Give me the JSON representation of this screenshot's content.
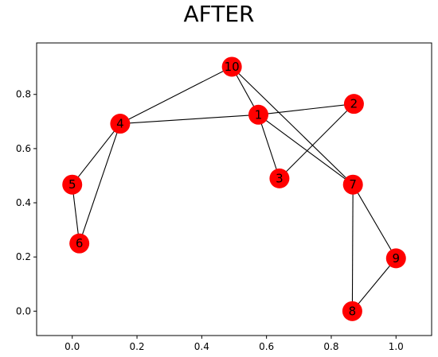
{
  "title": "AFTER",
  "chart_data": {
    "type": "network-graph",
    "title": "AFTER",
    "xlim": [
      -0.11,
      1.11
    ],
    "ylim": [
      -0.09,
      0.99
    ],
    "xticks": [
      0.0,
      0.2,
      0.4,
      0.6,
      0.8,
      1.0
    ],
    "xtick_labels": [
      "0.0",
      "0.2",
      "0.4",
      "0.6",
      "0.8",
      "1.0"
    ],
    "yticks": [
      0.0,
      0.2,
      0.4,
      0.6,
      0.8
    ],
    "ytick_labels": [
      "0.0",
      "0.2",
      "0.4",
      "0.6",
      "0.8"
    ],
    "grid": false,
    "node_color": "#ff0000",
    "edge_color": "#000000",
    "nodes": [
      {
        "id": "1",
        "x": 0.575,
        "y": 0.725
      },
      {
        "id": "2",
        "x": 0.87,
        "y": 0.765
      },
      {
        "id": "3",
        "x": 0.64,
        "y": 0.49
      },
      {
        "id": "4",
        "x": 0.148,
        "y": 0.692
      },
      {
        "id": "5",
        "x": 0.0,
        "y": 0.467
      },
      {
        "id": "6",
        "x": 0.022,
        "y": 0.25
      },
      {
        "id": "7",
        "x": 0.867,
        "y": 0.467
      },
      {
        "id": "8",
        "x": 0.865,
        "y": 0.0
      },
      {
        "id": "9",
        "x": 1.0,
        "y": 0.195
      },
      {
        "id": "10",
        "x": 0.493,
        "y": 0.902
      }
    ],
    "edges": [
      [
        "10",
        "4"
      ],
      [
        "10",
        "1"
      ],
      [
        "10",
        "7"
      ],
      [
        "4",
        "1"
      ],
      [
        "4",
        "5"
      ],
      [
        "4",
        "6"
      ],
      [
        "5",
        "6"
      ],
      [
        "1",
        "2"
      ],
      [
        "1",
        "3"
      ],
      [
        "1",
        "7"
      ],
      [
        "2",
        "3"
      ],
      [
        "7",
        "8"
      ],
      [
        "7",
        "9"
      ],
      [
        "8",
        "9"
      ]
    ]
  }
}
